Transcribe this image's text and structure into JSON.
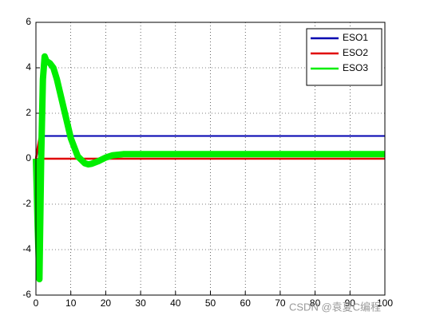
{
  "chart_data": {
    "type": "line",
    "x": [
      0,
      0.5,
      1,
      1.5,
      2,
      2.5,
      3,
      4,
      5,
      6,
      8,
      10,
      12,
      14,
      15,
      16,
      18,
      20,
      22,
      25,
      30,
      40,
      50,
      60,
      70,
      80,
      90,
      100
    ],
    "series": [
      {
        "name": "ESO1",
        "color": "#0000b0",
        "values": [
          0,
          0.3,
          0.6,
          0.9,
          1,
          1,
          1,
          1,
          1,
          1,
          1,
          1,
          1,
          1,
          1,
          1,
          1,
          1,
          1,
          1,
          1,
          1,
          1,
          1,
          1,
          1,
          1,
          1
        ]
      },
      {
        "name": "ESO2",
        "color": "#e00000",
        "values": [
          0,
          0.5,
          0.9,
          0.3,
          0,
          0,
          0,
          0,
          0,
          0,
          0,
          0,
          0,
          0,
          0,
          0,
          0,
          0,
          0,
          0,
          0,
          0,
          0,
          0,
          0,
          0,
          0,
          0
        ]
      },
      {
        "name": "ESO3",
        "color": "#00ee00",
        "values": [
          0,
          -3,
          -5.3,
          0,
          3.5,
          4.5,
          4.3,
          4.2,
          4.0,
          3.5,
          2.2,
          0.9,
          0.1,
          -0.2,
          -0.25,
          -0.22,
          -0.1,
          0.05,
          0.15,
          0.2,
          0.2,
          0.2,
          0.2,
          0.2,
          0.2,
          0.2,
          0.2,
          0.2
        ]
      }
    ],
    "xlim": [
      0,
      100
    ],
    "xticks": [
      0,
      10,
      20,
      30,
      40,
      50,
      60,
      70,
      80,
      90,
      100
    ],
    "ylim": [
      -6,
      6
    ],
    "yticks": [
      -6,
      -4,
      -2,
      0,
      2,
      4,
      6
    ],
    "grid": true,
    "legend": "top-right",
    "watermark": "CSDN @袁夏C编程"
  }
}
